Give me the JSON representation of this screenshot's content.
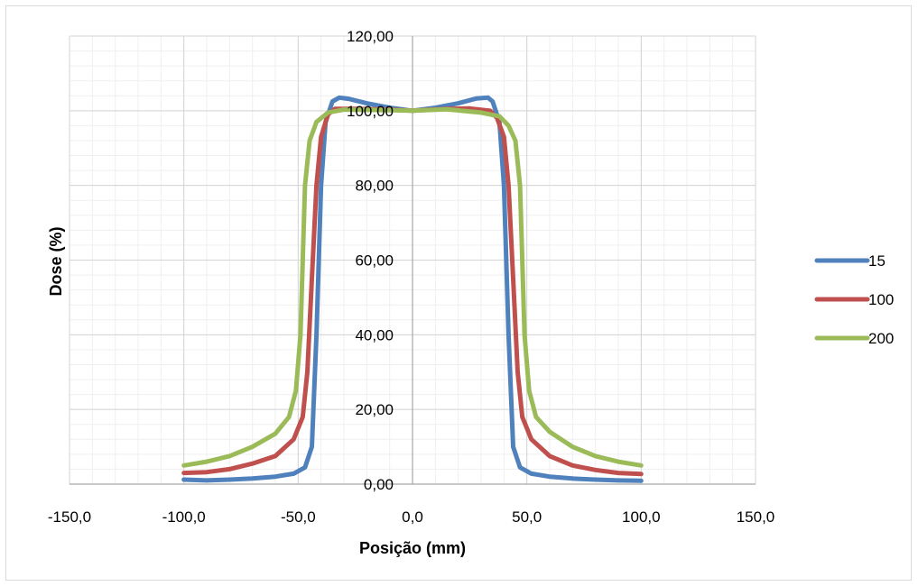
{
  "chart_data": {
    "type": "line",
    "title": "",
    "xlabel": "Posição (mm)",
    "ylabel": "Dose (%)",
    "xlim": [
      -150,
      150
    ],
    "ylim": [
      0,
      120
    ],
    "x_ticks": [
      -150,
      -100,
      -50,
      0,
      50,
      100,
      150
    ],
    "x_tick_labels": [
      "-150,0",
      "-100,0",
      "-50,0",
      "0,0",
      "50,0",
      "100,0",
      "150,0"
    ],
    "y_ticks": [
      0,
      20,
      40,
      60,
      80,
      100,
      120
    ],
    "y_tick_labels": [
      "0,00",
      "20,00",
      "40,00",
      "60,00",
      "80,00",
      "100,00",
      "120,00"
    ],
    "grid": true,
    "minor_grid": true,
    "legend_position": "right",
    "series": [
      {
        "name": "15",
        "color": "#4f81bd",
        "points": [
          [
            -100,
            1.2
          ],
          [
            -90,
            1.0
          ],
          [
            -80,
            1.2
          ],
          [
            -70,
            1.5
          ],
          [
            -60,
            2.0
          ],
          [
            -52,
            2.8
          ],
          [
            -47,
            4.5
          ],
          [
            -44,
            10
          ],
          [
            -42,
            40
          ],
          [
            -40,
            80
          ],
          [
            -38,
            97
          ],
          [
            -35,
            102.5
          ],
          [
            -32,
            103.5
          ],
          [
            -28,
            103.2
          ],
          [
            -20,
            102.0
          ],
          [
            -10,
            100.8
          ],
          [
            0,
            100.0
          ],
          [
            10,
            100.8
          ],
          [
            20,
            102.0
          ],
          [
            28,
            103.3
          ],
          [
            33,
            103.5
          ],
          [
            35,
            102.5
          ],
          [
            38,
            97
          ],
          [
            40,
            80
          ],
          [
            42,
            40
          ],
          [
            44,
            10
          ],
          [
            47,
            4.5
          ],
          [
            52,
            2.8
          ],
          [
            60,
            2.0
          ],
          [
            70,
            1.5
          ],
          [
            80,
            1.2
          ],
          [
            90,
            1.0
          ],
          [
            100,
            0.9
          ]
        ]
      },
      {
        "name": "100",
        "color": "#c0504d",
        "points": [
          [
            -100,
            3.0
          ],
          [
            -90,
            3.2
          ],
          [
            -80,
            4.0
          ],
          [
            -70,
            5.5
          ],
          [
            -60,
            7.5
          ],
          [
            -52,
            12
          ],
          [
            -48,
            18
          ],
          [
            -46,
            30
          ],
          [
            -44,
            55
          ],
          [
            -42,
            80
          ],
          [
            -40,
            93
          ],
          [
            -37,
            99
          ],
          [
            -34,
            100.5
          ],
          [
            -25,
            100.5
          ],
          [
            -15,
            100.4
          ],
          [
            0,
            100.0
          ],
          [
            15,
            100.5
          ],
          [
            25,
            100.6
          ],
          [
            34,
            100.0
          ],
          [
            37,
            98
          ],
          [
            40,
            93
          ],
          [
            42,
            80
          ],
          [
            44,
            55
          ],
          [
            46,
            30
          ],
          [
            48,
            18
          ],
          [
            52,
            12
          ],
          [
            60,
            7.5
          ],
          [
            70,
            5.0
          ],
          [
            80,
            3.8
          ],
          [
            90,
            3.0
          ],
          [
            100,
            2.7
          ]
        ]
      },
      {
        "name": "200",
        "color": "#9bbb59",
        "points": [
          [
            -100,
            5.0
          ],
          [
            -90,
            6.0
          ],
          [
            -80,
            7.5
          ],
          [
            -70,
            10
          ],
          [
            -60,
            13.5
          ],
          [
            -54,
            18
          ],
          [
            -51,
            25
          ],
          [
            -49,
            40
          ],
          [
            -48,
            60
          ],
          [
            -47,
            80
          ],
          [
            -45,
            92
          ],
          [
            -42,
            97
          ],
          [
            -37,
            99.5
          ],
          [
            -30,
            100.3
          ],
          [
            -15,
            100.2
          ],
          [
            0,
            100.0
          ],
          [
            15,
            100.4
          ],
          [
            30,
            99.5
          ],
          [
            38,
            98.5
          ],
          [
            42,
            96
          ],
          [
            45,
            92
          ],
          [
            47,
            80
          ],
          [
            48,
            60
          ],
          [
            49,
            40
          ],
          [
            51,
            25
          ],
          [
            54,
            18
          ],
          [
            60,
            14
          ],
          [
            70,
            10
          ],
          [
            80,
            7.5
          ],
          [
            90,
            6.0
          ],
          [
            100,
            5.0
          ]
        ]
      }
    ]
  }
}
